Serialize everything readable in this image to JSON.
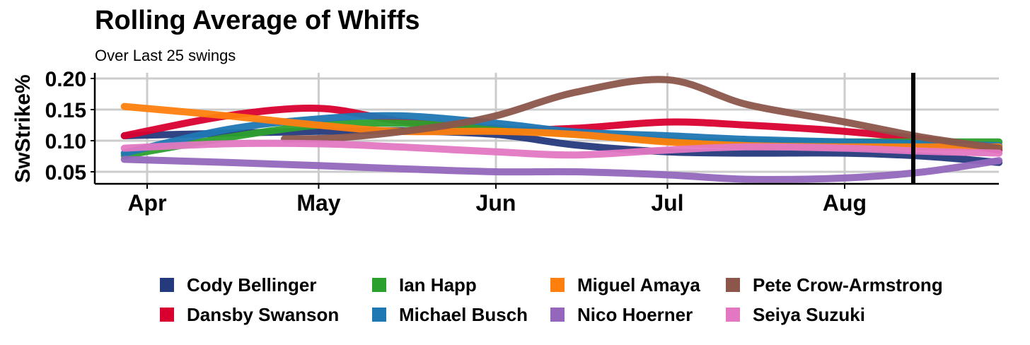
{
  "chart_data": {
    "type": "line",
    "title": "Rolling Average of Whiffs",
    "subtitle": "Over Last 25 swings",
    "xlabel": "",
    "ylabel": "SwStrike%",
    "x_ticks": [
      "Apr",
      "May",
      "Jun",
      "Jul",
      "Aug"
    ],
    "y_ticks": [
      "0.05",
      "0.10",
      "0.15",
      "0.20"
    ],
    "ylim": [
      0.03,
      0.21
    ],
    "grid": true,
    "legend_position": "bottom",
    "reference_line_date": "2024-08-13",
    "series": [
      {
        "name": "Cody Bellinger",
        "color": "#253a7c",
        "x": [
          "2024-03-28",
          "2024-04-15",
          "2024-05-01",
          "2024-05-15",
          "2024-06-01",
          "2024-06-15",
          "2024-07-01",
          "2024-07-15",
          "2024-08-01",
          "2024-08-15",
          "2024-08-28"
        ],
        "y": [
          0.108,
          0.112,
          0.115,
          0.116,
          0.11,
          0.093,
          0.082,
          0.08,
          0.08,
          0.075,
          0.065
        ]
      },
      {
        "name": "Dansby Swanson",
        "color": "#d9002f",
        "x": [
          "2024-03-28",
          "2024-04-15",
          "2024-05-01",
          "2024-05-15",
          "2024-06-01",
          "2024-06-15",
          "2024-07-01",
          "2024-07-15",
          "2024-08-01",
          "2024-08-15",
          "2024-08-28"
        ],
        "y": [
          0.108,
          0.14,
          0.152,
          0.132,
          0.118,
          0.12,
          0.13,
          0.125,
          0.115,
          0.102,
          0.085
        ]
      },
      {
        "name": "Ian Happ",
        "color": "#2ca02c",
        "x": [
          "2024-03-28",
          "2024-04-15",
          "2024-05-01",
          "2024-05-15",
          "2024-06-01",
          "2024-06-15",
          "2024-07-01",
          "2024-07-15",
          "2024-08-01",
          "2024-08-15",
          "2024-08-28"
        ],
        "y": [
          0.076,
          0.105,
          0.125,
          0.128,
          0.12,
          0.11,
          0.1,
          0.098,
          0.098,
          0.098,
          0.098
        ]
      },
      {
        "name": "Michael Busch",
        "color": "#1f77b4",
        "x": [
          "2024-03-28",
          "2024-04-15",
          "2024-05-01",
          "2024-05-15",
          "2024-06-01",
          "2024-06-15",
          "2024-07-01",
          "2024-07-15",
          "2024-08-01",
          "2024-08-15",
          "2024-08-28"
        ],
        "y": [
          0.08,
          0.118,
          0.135,
          0.14,
          0.128,
          0.114,
          0.108,
          0.102,
          0.098,
          0.095,
          0.092
        ]
      },
      {
        "name": "Miguel Amaya",
        "color": "#ff7f0e",
        "x": [
          "2024-03-28",
          "2024-04-15",
          "2024-05-01",
          "2024-05-15",
          "2024-06-01",
          "2024-06-15",
          "2024-07-01",
          "2024-07-15",
          "2024-08-01",
          "2024-08-15",
          "2024-08-28"
        ],
        "y": [
          0.155,
          0.14,
          0.125,
          0.115,
          0.115,
          0.11,
          0.098,
          0.092,
          0.09,
          0.09,
          0.09
        ]
      },
      {
        "name": "Nico Hoerner",
        "color": "#9467bd",
        "x": [
          "2024-03-28",
          "2024-04-15",
          "2024-05-01",
          "2024-05-15",
          "2024-06-01",
          "2024-06-15",
          "2024-07-01",
          "2024-07-15",
          "2024-08-01",
          "2024-08-15",
          "2024-08-28"
        ],
        "y": [
          0.07,
          0.065,
          0.06,
          0.055,
          0.05,
          0.05,
          0.045,
          0.038,
          0.04,
          0.05,
          0.068
        ]
      },
      {
        "name": "Pete Crow-Armstrong",
        "color": "#8c564b",
        "x": [
          "2024-04-25",
          "2024-05-05",
          "2024-05-20",
          "2024-06-01",
          "2024-06-15",
          "2024-07-01",
          "2024-07-15",
          "2024-08-01",
          "2024-08-15",
          "2024-08-28"
        ],
        "y": [
          0.103,
          0.105,
          0.12,
          0.14,
          0.178,
          0.198,
          0.158,
          0.13,
          0.105,
          0.088
        ]
      },
      {
        "name": "Seiya Suzuki",
        "color": "#e377c2",
        "x": [
          "2024-03-28",
          "2024-04-15",
          "2024-05-01",
          "2024-05-15",
          "2024-06-01",
          "2024-06-15",
          "2024-07-01",
          "2024-07-15",
          "2024-08-01",
          "2024-08-15",
          "2024-08-28"
        ],
        "y": [
          0.088,
          0.095,
          0.095,
          0.09,
          0.082,
          0.077,
          0.085,
          0.09,
          0.088,
          0.083,
          0.08
        ]
      }
    ]
  }
}
